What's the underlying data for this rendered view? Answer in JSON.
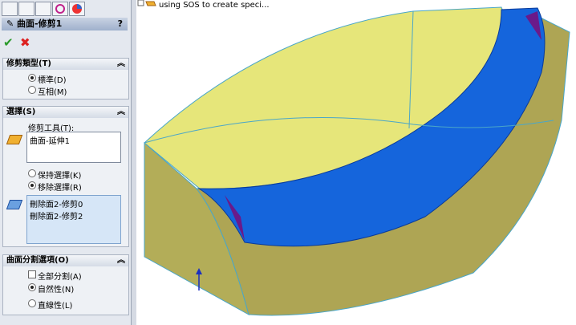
{
  "feature_tree": {
    "item": "using SOS to create speci..."
  },
  "property_manager": {
    "title": "曲面-修剪1",
    "help": "?",
    "groups": [
      {
        "title": "修剪類型(T)",
        "options": [
          {
            "label": "標準(D)",
            "checked": true
          },
          {
            "label": "互相(M)",
            "checked": false
          }
        ]
      },
      {
        "title": "選擇(S)",
        "tool_label": "修剪工具(T):",
        "tool_list": [
          "曲面-延伸1"
        ],
        "options": [
          {
            "label": "保持選擇(K)",
            "checked": false
          },
          {
            "label": "移除選擇(R)",
            "checked": true
          }
        ],
        "selection_list": [
          "刪除面2-修剪0",
          "刪除面2-修剪2"
        ]
      },
      {
        "title": "曲面分割選項(O)",
        "checkbox": {
          "label": "全部分割(A)",
          "checked": false
        },
        "options": [
          {
            "label": "自然性(N)",
            "checked": true
          },
          {
            "label": "直線性(L)",
            "checked": false
          }
        ]
      }
    ]
  }
}
